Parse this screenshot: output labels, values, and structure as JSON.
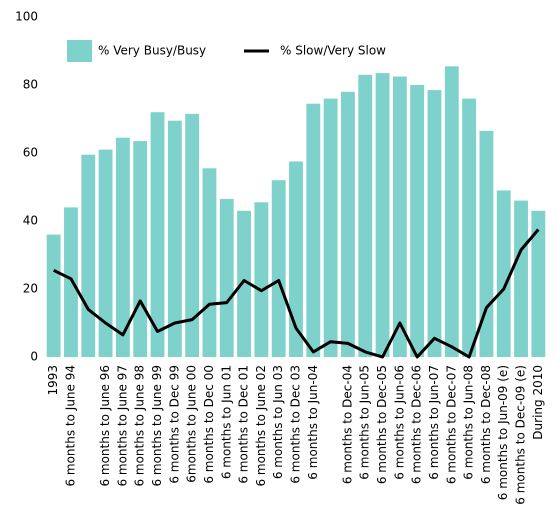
{
  "chart_data": {
    "type": "bar_line",
    "categories": [
      "1993",
      "6 months to June 94",
      null,
      "6 months to June 96",
      "6 months to June 97",
      "6 months to June 98",
      "6 months to June 99",
      "6 months to Dec 99",
      "6months to June 00",
      "6 months to Dec 00",
      "6 months to Jun 01",
      "6 months to Dec 01",
      "6 months to June 02",
      "6 months to Jun 03",
      "6 months to Dec 03",
      "6 months to Jun-04",
      null,
      "6 months to Dec-04",
      "6 months to Jun-05",
      "6 months to Dec-05",
      "6 months to Jun-06",
      "6 months to Dec-06",
      "6 months to Jun-07",
      "6 months to Dec-07",
      "6 months to Jun-08",
      "6 months to Dec-08",
      "6 months to Jun-09 (e)",
      "6 months to Dec-09 (e)",
      "During 2010"
    ],
    "series": [
      {
        "name": "% Very Busy/Busy",
        "kind": "bar",
        "color": "#7fd1cc",
        "values": [
          36,
          44,
          59.5,
          61,
          64.5,
          63.5,
          72,
          69.5,
          71.5,
          55.5,
          46.5,
          43,
          45.5,
          52,
          57.5,
          74.5,
          76,
          78,
          83,
          83.5,
          82.5,
          80,
          78.5,
          85.5,
          76,
          66.5,
          49,
          46,
          43
        ]
      },
      {
        "name": "% Slow/Very Slow",
        "kind": "line",
        "color": "#000000",
        "values": [
          25.5,
          23,
          14,
          10,
          6.5,
          16.5,
          7.5,
          10,
          11,
          15.5,
          16,
          22.5,
          19.5,
          22.5,
          8.5,
          1.5,
          4.5,
          4,
          1.5,
          0,
          10,
          0,
          5.5,
          3,
          0,
          14.5,
          20,
          31.5,
          37.5
        ]
      }
    ],
    "ylim": [
      0,
      100
    ],
    "yticks": [
      0,
      20,
      40,
      60,
      80,
      100
    ]
  }
}
